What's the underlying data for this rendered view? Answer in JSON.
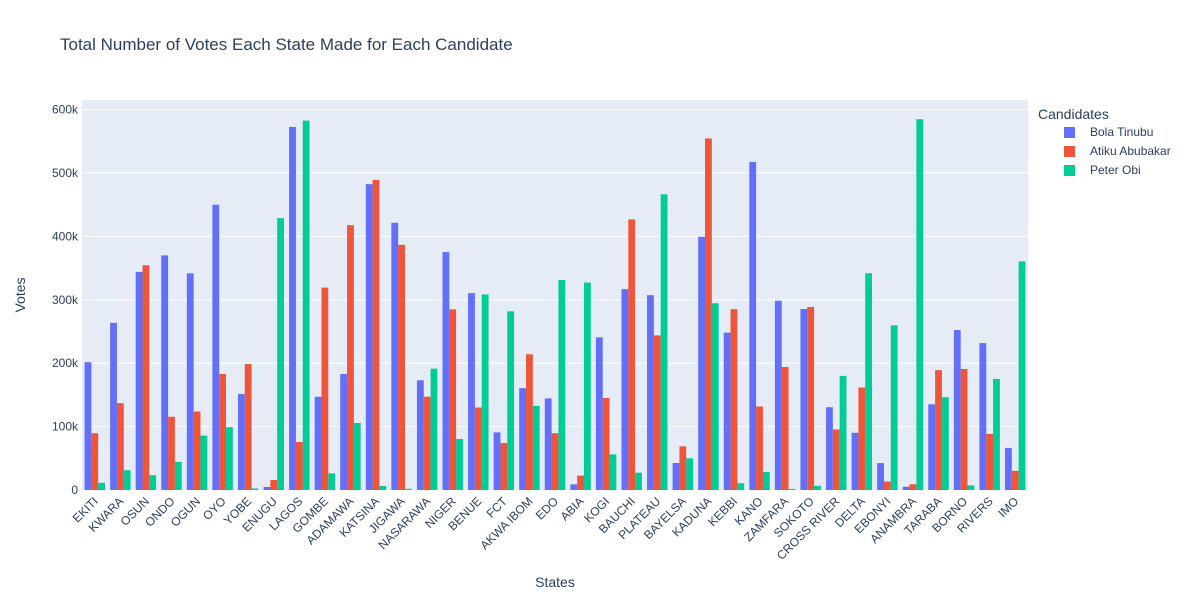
{
  "chart_data": {
    "type": "bar",
    "title": "Total Number of Votes Each State Made for Each Candidate",
    "xlabel": "States",
    "ylabel": "Votes",
    "ylim": [
      0,
      615000
    ],
    "yticks": [
      0,
      100000,
      200000,
      300000,
      400000,
      500000,
      600000
    ],
    "ytick_labels": [
      "0",
      "100k",
      "200k",
      "300k",
      "400k",
      "500k",
      "600k"
    ],
    "grid": true,
    "legend": {
      "title": "Candidates",
      "position": "top-right"
    },
    "categories": [
      "EKITI",
      "KWARA",
      "OSUN",
      "ONDO",
      "OGUN",
      "OYO",
      "YOBE",
      "ENUGU",
      "LAGOS",
      "GOMBE",
      "ADAMAWA",
      "KATSINA",
      "JIGAWA",
      "NASARAWA",
      "NIGER",
      "BENUE",
      "FCT",
      "AKWA IBOM",
      "EDO",
      "ABIA",
      "KOGI",
      "BAUCHI",
      "PLATEAU",
      "BAYELSA",
      "KADUNA",
      "KEBBI",
      "KANO",
      "ZAMFARA",
      "SOKOTO",
      "CROSS RIVER",
      "DELTA",
      "EBONYI",
      "ANAMBRA",
      "TARABA",
      "BORNO",
      "RIVERS",
      "IMO"
    ],
    "series": [
      {
        "name": "Bola Tinubu",
        "color": "#636efa",
        "values": [
          201494,
          263572,
          343945,
          369924,
          341554,
          449884,
          151459,
          4772,
          572606,
          146977,
          182881,
          482283,
          421390,
          172922,
          375183,
          310468,
          90902,
          160620,
          144471,
          8914,
          240751,
          316694,
          307195,
          42572,
          399293,
          248088,
          517341,
          298396,
          285444,
          130520,
          90183,
          42402,
          5111,
          135165,
          252282,
          231591,
          66406
        ]
      },
      {
        "name": "Atiku Abubakar",
        "color": "#ef553b",
        "values": [
          89554,
          136909,
          354366,
          115463,
          123831,
          182977,
          198567,
          15749,
          75750,
          319123,
          417611,
          489045,
          386587,
          147093,
          284898,
          130081,
          74194,
          214012,
          89585,
          22676,
          145104,
          426607,
          243808,
          68818,
          554360,
          285175,
          131716,
          193978,
          288679,
          95425,
          161600,
          13503,
          9036,
          189017,
          190921,
          88468,
          30234
        ]
      },
      {
        "name": "Peter Obi",
        "color": "#00cc96",
        "values": [
          11397,
          31166,
          23283,
          44405,
          85829,
          99110,
          2406,
          428640,
          582454,
          26160,
          105648,
          6376,
          1889,
          191361,
          80452,
          308372,
          281717,
          132683,
          331163,
          327095,
          56217,
          27373,
          466272,
          49975,
          294494,
          10682,
          28513,
          1660,
          6568,
          179917,
          341866,
          259738,
          584621,
          146315,
          7205,
          175071,
          360495
        ]
      }
    ]
  }
}
